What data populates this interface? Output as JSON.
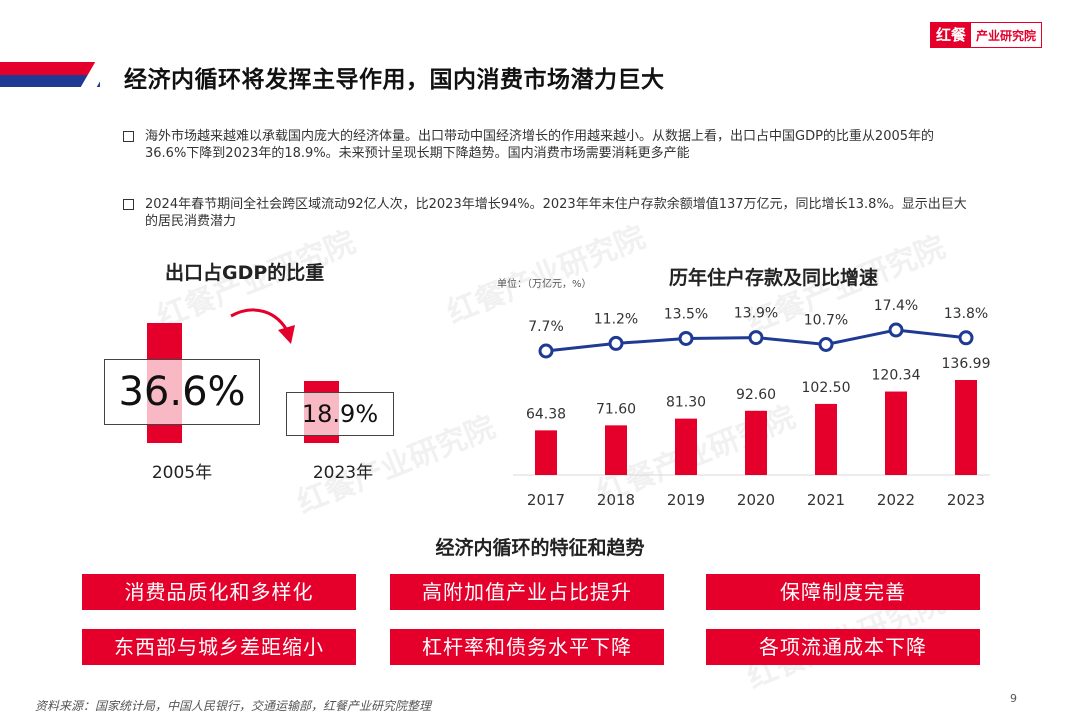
{
  "header": {
    "logo_mark": "红餐",
    "logo_text": "产业研究院",
    "title": "经济内循环将发挥主导作用，国内消费市场潜力巨大"
  },
  "bullets": [
    "海外市场越来越难以承载国内庞大的经济体量。出口带动中国经济增长的作用越来越小。从数据上看，出口占中国GDP的比重从2005年的36.6%下降到2023年的18.9%。未来预计呈现长期下降趋势。国内消费市场需要消耗更多产能",
    "2024年春节期间全社会跨区域流动92亿人次，比2023年增长94%。2023年年末住户存款余额增值137万亿元，同比增长13.8%。显示出巨大的居民消费潜力"
  ],
  "watermark": "红餐产业研究院",
  "chart_data": [
    {
      "type": "bar",
      "title": "出口占GDP的比重",
      "categories": [
        "2005年",
        "2023年"
      ],
      "values": [
        36.6,
        18.9
      ],
      "value_labels": [
        "36.6%",
        "18.9%"
      ],
      "colors": {
        "bar": "#e4002b",
        "arrow": "#e4002b"
      }
    },
    {
      "type": "bar",
      "title": "历年住户存款及同比增速",
      "unit": "单位：（万亿元，%）",
      "categories": [
        "2017",
        "2018",
        "2019",
        "2020",
        "2021",
        "2022",
        "2023"
      ],
      "series": [
        {
          "type": "bar",
          "values": [
            64.38,
            71.6,
            81.3,
            92.6,
            102.5,
            120.34,
            136.99
          ],
          "labels": [
            "64.38",
            "71.60",
            "81.30",
            "92.60",
            "102.50",
            "120.34",
            "136.99"
          ],
          "color": "#e4002b"
        },
        {
          "type": "line",
          "values": [
            7.7,
            11.2,
            13.5,
            13.9,
            10.7,
            17.4,
            13.8
          ],
          "labels": [
            "7.7%",
            "11.2%",
            "13.5%",
            "13.9%",
            "10.7%",
            "17.4%",
            "13.8%"
          ],
          "color": "#1f3a93"
        }
      ]
    }
  ],
  "features": {
    "title": "经济内循环的特征和趋势",
    "items": [
      "消费品质化和多样化",
      "高附加值产业占比提升",
      "保障制度完善",
      "东西部与城乡差距缩小",
      "杠杆率和债务水平下降",
      "各项流通成本下降"
    ]
  },
  "footer": {
    "source": "资料来源：国家统计局，中国人民银行，交通运输部，红餐产业研究院整理",
    "page": "9"
  }
}
